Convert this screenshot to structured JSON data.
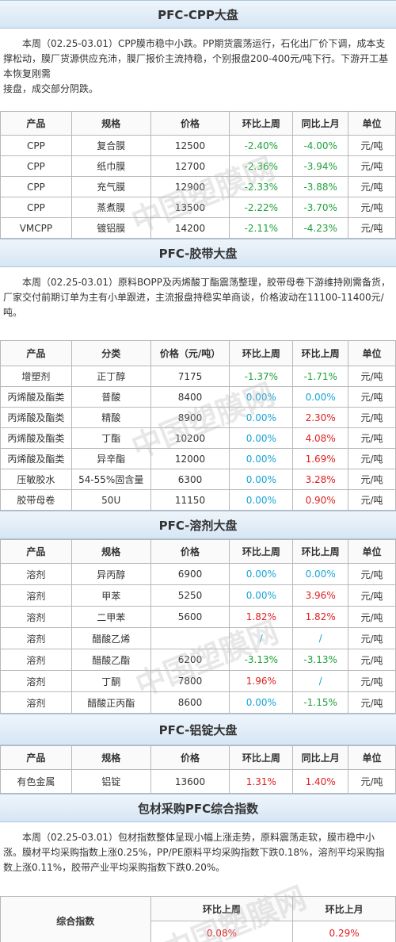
{
  "watermark": "中国塑膜网",
  "sections": [
    {
      "title": "PFC-CPP大盘",
      "paragraph": [
        "本周（02.25-03.01）CPP膜市稳中小跌。PP期货震荡运行，石化出厂价下调，成本支撑松动，膜厂货源供应充沛，膜厂报价主流持稳，个别报盘200-400元/吨下行。下游开工基本恢复刚需",
        "接盘，成交部分阴跌。"
      ],
      "table": {
        "header": [
          "产品",
          "规格",
          "价格",
          "环比上周",
          "同比上月",
          "单位"
        ],
        "rows": [
          [
            "CPP",
            "复合膜",
            "12500",
            "-2.40%",
            "-4.00%",
            "元/吨"
          ],
          [
            "CPP",
            "纸巾膜",
            "12700",
            "-2.36%",
            "-3.94%",
            "元/吨"
          ],
          [
            "CPP",
            "充气膜",
            "12900",
            "-2.33%",
            "-3.88%",
            "元/吨"
          ],
          [
            "CPP",
            "蒸煮膜",
            "13500",
            "-2.22%",
            "-3.70%",
            "元/吨"
          ],
          [
            "VMCPP",
            "镀铝膜",
            "14200",
            "-2.11%",
            "-4.23%",
            "元/吨"
          ]
        ]
      }
    },
    {
      "title": "PFC-胶带大盘",
      "paragraph": [
        "本周（02.25-03.01）原料BOPP及丙烯酸丁酯震荡整理，胶带母卷下游维持刚需备货，厂家交付前期订单为主有小单跟进，主流报盘持稳实单商谈，价格波动在11100-11400元/吨。"
      ],
      "table": {
        "header": [
          "产品",
          "分类",
          "价格（元/吨）",
          "环比上周",
          "环比上周",
          "单位"
        ],
        "rows": [
          [
            "增塑剂",
            "正丁醇",
            "7175",
            "-1.37%",
            "-1.71%",
            "元/吨"
          ],
          [
            "丙烯酸及酯类",
            "普酸",
            "8400",
            "0.00%",
            "0.00%",
            "元/吨"
          ],
          [
            "丙烯酸及酯类",
            "精酸",
            "8900",
            "0.00%",
            "2.30%",
            "元/吨"
          ],
          [
            "丙烯酸及酯类",
            "丁酯",
            "10200",
            "0.00%",
            "4.08%",
            "元/吨"
          ],
          [
            "丙烯酸及酯类",
            "异辛酯",
            "12000",
            "0.00%",
            "1.69%",
            "元/吨"
          ],
          [
            "压敏胶水",
            "54-55%固含量",
            "6300",
            "0.00%",
            "3.28%",
            "元/吨"
          ],
          [
            "胶带母卷",
            "50U",
            "11150",
            "0.00%",
            "0.90%",
            "元/吨"
          ]
        ]
      }
    },
    {
      "title": "PFC-溶剂大盘",
      "table": {
        "header": [
          "产品",
          "规格",
          "价格",
          "环比上周",
          "环比上周",
          "单位"
        ],
        "rows": [
          [
            "溶剂",
            "异丙醇",
            "6900",
            "0.00%",
            "0.00%",
            "元/吨"
          ],
          [
            "溶剂",
            "甲苯",
            "5250",
            "0.00%",
            "3.96%",
            "元/吨"
          ],
          [
            "溶剂",
            "二甲苯",
            "5600",
            "1.82%",
            "1.82%",
            "元/吨"
          ],
          [
            "溶剂",
            "醋酸乙烯",
            null,
            "/",
            "/",
            "元/吨"
          ],
          [
            "溶剂",
            "醋酸乙酯",
            "6200",
            "-3.13%",
            "-3.13%",
            "元/吨"
          ],
          [
            "溶剂",
            "丁酮",
            "7800",
            "1.96%",
            "/",
            "元/吨"
          ],
          [
            "溶剂",
            "醋酸正丙酯",
            "8600",
            "0.00%",
            "-1.15%",
            "元/吨"
          ]
        ]
      }
    },
    {
      "title": "PFC-铝锭大盘",
      "table": {
        "header": [
          "产品",
          "规格",
          "价格",
          "环比上周",
          "同比上月",
          "单位"
        ],
        "rows": [
          [
            "有色金属",
            "铝锭",
            "13600",
            "1.31%",
            "1.40%",
            "元/吨"
          ]
        ]
      }
    },
    {
      "title": "包材采购PFC综合指数",
      "paragraph": [
        "本周（02.25-03.01）包材指数整体呈现小幅上涨走势，原料震荡走软，膜市稳中小涨。膜材平均采购指数上涨0.25%，PP/PE原料平均采购指数下跌0.18%，溶剂平均采购指数上涨0.11%，胶带产业平均采购指数下跌0.20%。"
      ],
      "index_table": {
        "label": "综合指数",
        "header": [
          "环比上周",
          "环比上月"
        ],
        "values": [
          "0.08%",
          "0.29%"
        ]
      }
    }
  ]
}
